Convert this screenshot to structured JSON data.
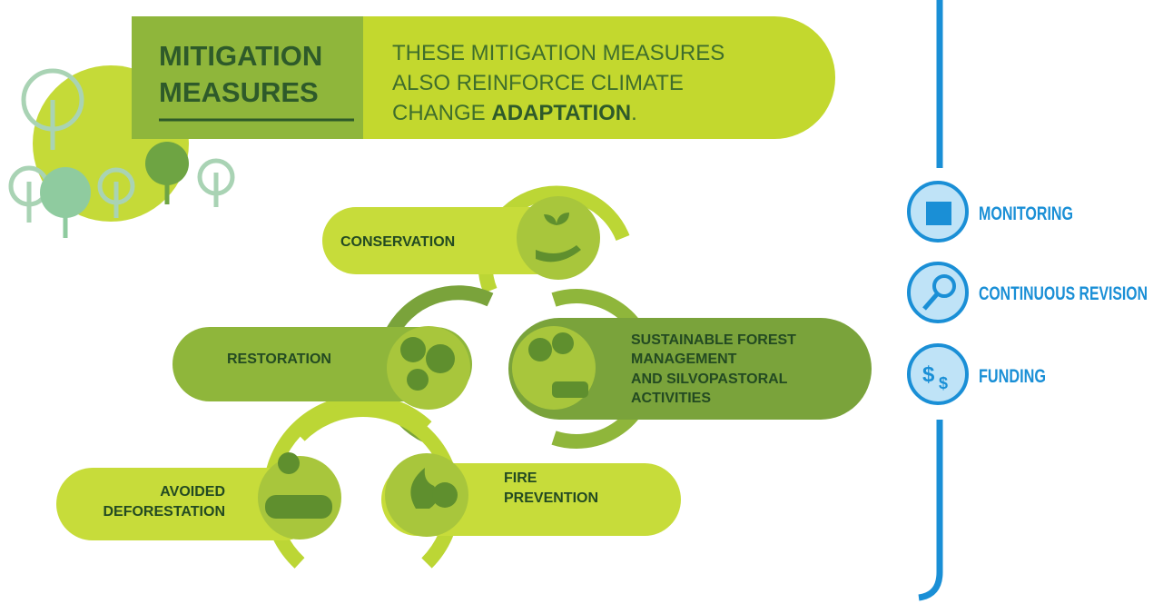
{
  "header": {
    "title_lines": [
      "MITIGATION",
      "MEASURES"
    ],
    "subtitle_lines": [
      "THESE MITIGATION MEASURES",
      "ALSO REINFORCE CLIMATE"
    ],
    "subtitle_last": {
      "text": "CHANGE",
      "emphasis": "ADAPTATION",
      "end": "."
    }
  },
  "measures": [
    {
      "lines": [
        "CONSERVATION"
      ]
    },
    {
      "lines": [
        "RESTORATION"
      ]
    },
    {
      "lines": [
        "SUSTAINABLE FOREST",
        "MANAGEMENT",
        "AND SILVOPASTORAL",
        "ACTIVITIES"
      ]
    },
    {
      "lines": [
        "AVOIDED",
        "DEFORESTATION"
      ]
    },
    {
      "lines": [
        "FIRE",
        "PREVENTION"
      ]
    }
  ],
  "sidebar": {
    "items": [
      "MONITORING",
      "CONTINUOUS REVISION",
      "FUNDING"
    ]
  }
}
